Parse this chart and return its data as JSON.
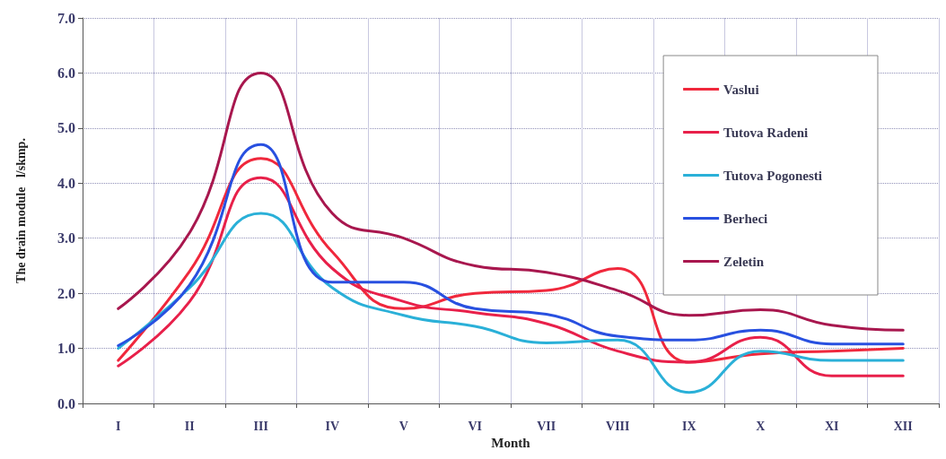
{
  "chart_data": {
    "type": "line",
    "xlabel": "Month",
    "ylabel": "The drain module   l/skmp.",
    "categories": [
      "I",
      "II",
      "III",
      "IV",
      "V",
      "VI",
      "VII",
      "VIII",
      "IX",
      "X",
      "XI",
      "XII"
    ],
    "series": [
      {
        "name": "Vaslui",
        "color": "#f0283c",
        "values": [
          0.78,
          2.4,
          4.45,
          2.75,
          1.72,
          2.0,
          2.05,
          2.45,
          0.75,
          0.9,
          0.95,
          1.0
        ]
      },
      {
        "name": "Tutova Radeni",
        "color": "#e8204a",
        "values": [
          0.68,
          1.85,
          4.1,
          2.45,
          1.85,
          1.65,
          1.45,
          0.95,
          0.75,
          1.2,
          0.5,
          0.5
        ]
      },
      {
        "name": "Tutova Pogonesti",
        "color": "#2ab0d8",
        "values": [
          1.0,
          2.1,
          3.45,
          2.1,
          1.6,
          1.4,
          1.1,
          1.15,
          0.2,
          0.95,
          0.78,
          0.78
        ]
      },
      {
        "name": "Berheci",
        "color": "#2850e0",
        "values": [
          1.05,
          2.15,
          4.7,
          2.2,
          2.2,
          1.72,
          1.62,
          1.22,
          1.15,
          1.33,
          1.08,
          1.08
        ]
      },
      {
        "name": "Zeletin",
        "color": "#a8174e",
        "values": [
          1.72,
          3.1,
          6.0,
          3.45,
          3.0,
          2.5,
          2.38,
          2.05,
          1.6,
          1.7,
          1.42,
          1.33
        ]
      }
    ],
    "ylim": [
      0,
      7
    ],
    "yticks": [
      {
        "value": 0,
        "label": "0.0"
      },
      {
        "value": 1,
        "label": "1.0"
      },
      {
        "value": 2,
        "label": "2.0"
      },
      {
        "value": 3,
        "label": "3.0"
      },
      {
        "value": 4,
        "label": "4.0"
      },
      {
        "value": 5,
        "label": "5.0"
      },
      {
        "value": 6,
        "label": "6.0"
      },
      {
        "value": 7,
        "label": "7.0"
      }
    ],
    "grid": true,
    "legend": "top right",
    "marker": "none",
    "line_style": "solid"
  }
}
